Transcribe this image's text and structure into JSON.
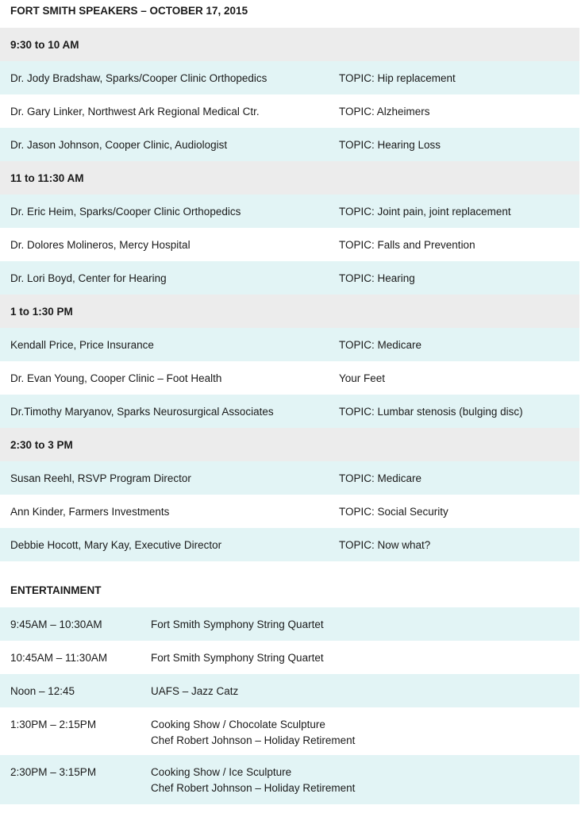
{
  "title": "FORT SMITH SPEAKERS – OCTOBER 17, 2015",
  "speaker_sessions": [
    {
      "time": "9:30 to 10 AM",
      "rows": [
        {
          "speaker": "Dr. Jody Bradshaw, Sparks/Cooper Clinic Orthopedics",
          "topic": "TOPIC: Hip replacement"
        },
        {
          "speaker": "Dr. Gary Linker, Northwest Ark Regional Medical Ctr.",
          "topic": "TOPIC: Alzheimers"
        },
        {
          "speaker": "Dr. Jason Johnson, Cooper Clinic, Audiologist",
          "topic": "TOPIC: Hearing Loss"
        }
      ]
    },
    {
      "time": "11 to 11:30 AM",
      "rows": [
        {
          "speaker": "Dr. Eric Heim, Sparks/Cooper Clinic Orthopedics",
          "topic": "TOPIC: Joint pain, joint replacement"
        },
        {
          "speaker": "Dr. Dolores Molineros, Mercy Hospital",
          "topic": "TOPIC: Falls and Prevention"
        },
        {
          "speaker": "Dr. Lori Boyd, Center for Hearing",
          "topic": "TOPIC: Hearing"
        }
      ]
    },
    {
      "time": "1 to 1:30 PM",
      "rows": [
        {
          "speaker": "Kendall Price, Price Insurance",
          "topic": "TOPIC: Medicare"
        },
        {
          "speaker": "Dr. Evan Young, Cooper Clinic – Foot Health",
          "topic": "Your Feet"
        },
        {
          "speaker": "Dr.Timothy Maryanov, Sparks Neurosurgical Associates",
          "topic": "TOPIC: Lumbar stenosis (bulging disc)"
        }
      ]
    },
    {
      "time": "2:30 to 3 PM",
      "rows": [
        {
          "speaker": "Susan Reehl, RSVP Program Director",
          "topic": "TOPIC: Medicare"
        },
        {
          "speaker": "Ann Kinder, Farmers Investments",
          "topic": "TOPIC: Social Security"
        },
        {
          "speaker": "Debbie Hocott, Mary Kay, Executive Director",
          "topic": "TOPIC: Now what?"
        }
      ]
    }
  ],
  "entertainment": {
    "title": "ENTERTAINMENT",
    "rows": [
      {
        "time": "9:45AM – 10:30AM",
        "lines": [
          "Fort Smith Symphony String Quartet"
        ]
      },
      {
        "time": "10:45AM – 11:30AM",
        "lines": [
          "Fort Smith Symphony String Quartet"
        ]
      },
      {
        "time": "Noon – 12:45",
        "lines": [
          "UAFS – Jazz Catz"
        ]
      },
      {
        "time": "1:30PM – 2:15PM",
        "lines": [
          "Cooking Show / Chocolate Sculpture",
          "Chef Robert Johnson – Holiday Retirement"
        ]
      },
      {
        "time": "2:30PM – 3:15PM",
        "lines": [
          "Cooking Show / Ice Sculpture",
          "Chef Robert Johnson – Holiday Retirement"
        ]
      }
    ]
  },
  "colors": {
    "header_row": "#ececec",
    "band_row": "#e2f4f5"
  }
}
